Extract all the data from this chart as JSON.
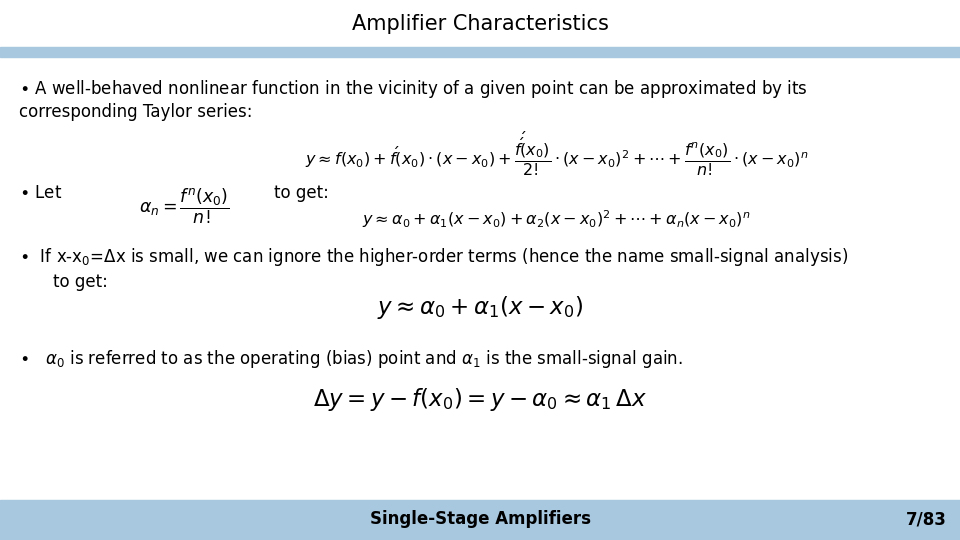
{
  "title": "Amplifier Characteristics",
  "title_fontsize": 15,
  "title_color": "#000000",
  "bg_color": "#ffffff",
  "header_bar_color": "#a8c8e0",
  "footer_bar_color": "#a8c8e0",
  "footer_text": "Single-Stage Amplifiers",
  "footer_page": "7/83",
  "footer_fontsize": 12,
  "body_fontsize": 12,
  "math_fontsize": 11.5
}
